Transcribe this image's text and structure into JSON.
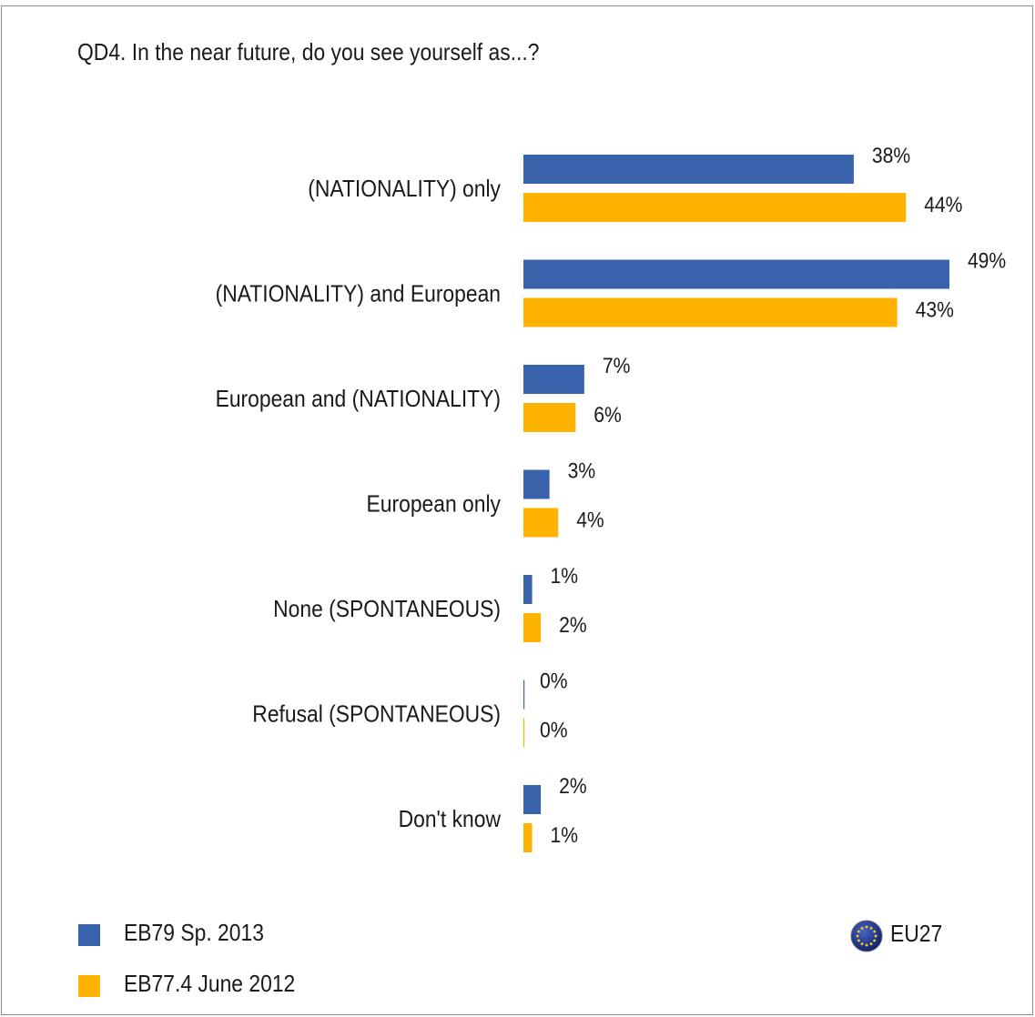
{
  "chart_data": {
    "type": "bar",
    "orientation": "horizontal",
    "title": "QD4. In the near future, do you see yourself as...?",
    "categories": [
      "(NATIONALITY) only",
      "(NATIONALITY) and European",
      "European and (NATIONALITY)",
      "European only",
      "None (SPONTANEOUS)",
      "Refusal (SPONTANEOUS)",
      "Don't know"
    ],
    "series": [
      {
        "name": "EB79 Sp. 2013",
        "color": "#3862ac",
        "values": [
          38,
          49,
          7,
          3,
          1,
          0,
          2
        ]
      },
      {
        "name": "EB77.4 June 2012",
        "color": "#ffb300",
        "values": [
          44,
          43,
          6,
          4,
          2,
          0,
          1
        ]
      }
    ],
    "value_suffix": "%",
    "xlim": [
      0,
      50
    ],
    "grid": false,
    "legend_position": "bottom-left"
  },
  "badge": {
    "label": "EU27",
    "icon": "eu-flag-icon"
  }
}
